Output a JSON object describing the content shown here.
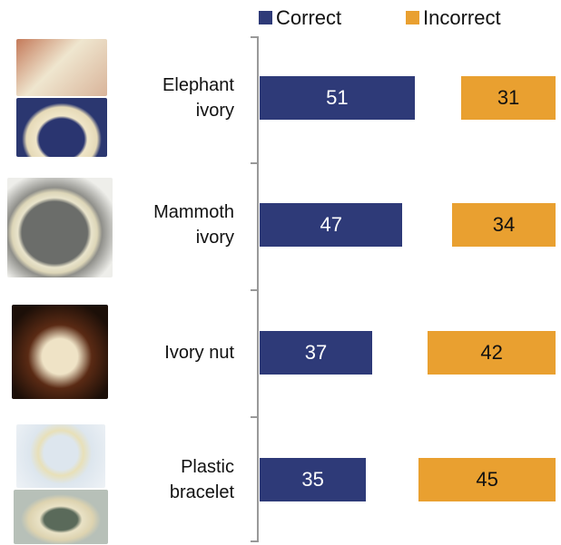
{
  "chart_data": {
    "type": "bar",
    "categories": [
      "Elephant ivory",
      "Mammoth ivory",
      "Ivory nut",
      "Plastic bracelet"
    ],
    "series": [
      {
        "name": "Correct",
        "color": "#2e3a78",
        "values": [
          51,
          47,
          37,
          35
        ]
      },
      {
        "name": "Incorrect",
        "color": "#e9a030",
        "values": [
          31,
          34,
          42,
          45
        ]
      }
    ]
  }
}
